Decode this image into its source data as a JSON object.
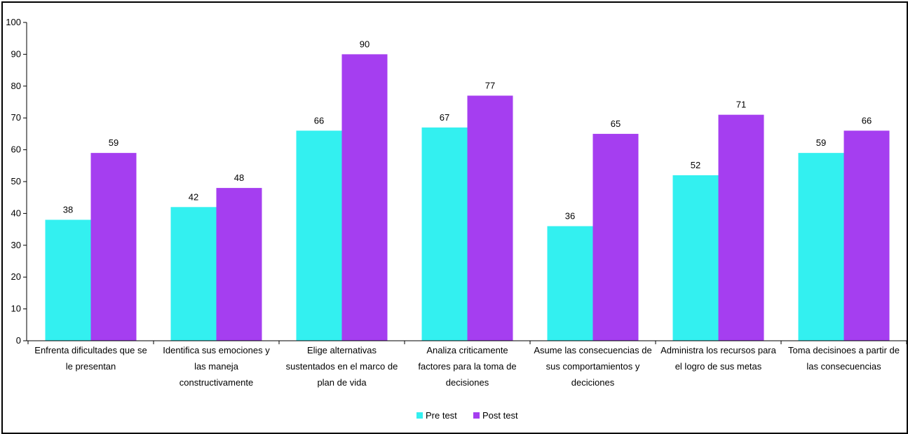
{
  "chart_data": {
    "type": "bar",
    "categories": [
      [
        "Enfrenta dificultades que se",
        "le presentan"
      ],
      [
        "Identifica sus emociones y",
        "las maneja",
        "constructivamente"
      ],
      [
        "Elige alternativas",
        "sustentados  en el marco de",
        "plan de vida"
      ],
      [
        "Analiza criticamente",
        "factores para la toma de",
        "decisiones"
      ],
      [
        "Asume las consecuencias de",
        "sus comportamientos y",
        "deciciones"
      ],
      [
        "Administra los recursos para",
        "el logro de sus metas"
      ],
      [
        "Toma decisinoes a partir de",
        "las consecuencias"
      ]
    ],
    "series": [
      {
        "name": "Pre test",
        "color": "#33f0f0",
        "values": [
          38,
          42,
          66,
          67,
          36,
          52,
          59
        ]
      },
      {
        "name": "Post test",
        "color": "#a53ef0",
        "values": [
          59,
          48,
          90,
          77,
          65,
          71,
          66
        ]
      }
    ],
    "ylim": [
      0,
      100
    ],
    "yticks": [
      0,
      10,
      20,
      30,
      40,
      50,
      60,
      70,
      80,
      90,
      100
    ],
    "legend": "bottom",
    "grid": false
  }
}
